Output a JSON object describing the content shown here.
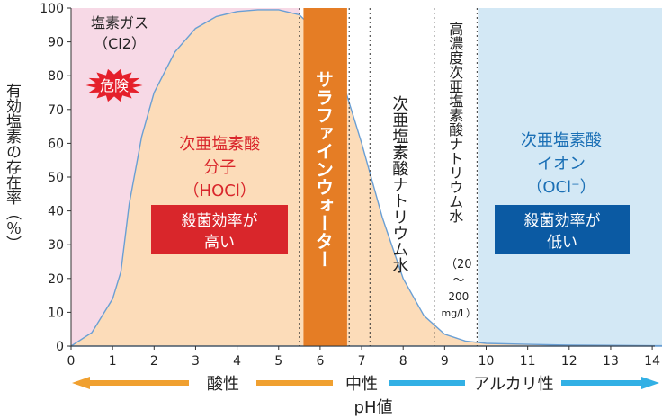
{
  "chart_data": {
    "type": "area",
    "ylabel": "有効塩素の存在率（％）",
    "xlabel": "pH値",
    "xlim": [
      0,
      14.7
    ],
    "ylim": [
      0,
      100
    ],
    "x_ticks": [
      "0",
      "1",
      "2",
      "3",
      "4",
      "5",
      "6",
      "7",
      "8",
      "9",
      "10",
      "11",
      "12",
      "13",
      "14"
    ],
    "y_ticks": [
      "0",
      "10",
      "20",
      "30",
      "40",
      "50",
      "60",
      "70",
      "80",
      "90",
      "100"
    ],
    "series": [
      {
        "x": [
          0,
          0.5,
          1.0,
          1.2,
          1.4,
          1.7,
          2.0,
          2.5,
          3.0,
          3.5,
          4.0,
          4.5,
          5.0,
          5.5,
          6.0,
          6.5,
          7.0,
          7.5,
          8.0,
          8.5,
          9.0,
          9.5,
          10.0,
          11.0,
          12.0,
          13.0,
          14.0,
          14.7
        ],
        "y": [
          0,
          4,
          14,
          22,
          42,
          62,
          75,
          87,
          94,
          97.5,
          99,
          99.5,
          99.5,
          98,
          92,
          80,
          60,
          38,
          20,
          9,
          3.5,
          1.5,
          0.8,
          0.5,
          0.3,
          0.2,
          0.1,
          0.1
        ]
      }
    ],
    "regions": [
      {
        "label": "塩素ガス",
        "formula": "（Cl2）",
        "badge": "危険",
        "color": "#f7d9e6"
      },
      {
        "title": [
          "次亜塩素酸",
          "分子",
          "（HOCl）"
        ],
        "box": [
          "殺菌効率が",
          "高い"
        ],
        "color": "#fcdcb9",
        "box_color": "#d9262b"
      },
      {
        "label": "サラファインウォーター",
        "color": "#e57d25"
      },
      {
        "label": "次亜塩素酸ナトリウム水",
        "color": "#ffffff"
      },
      {
        "label": "高濃度次亜塩素酸ナトリウム水",
        "sub": [
          "（20",
          "〜",
          "200",
          "mg/L）"
        ],
        "color": "#ffffff"
      },
      {
        "title": [
          "次亜塩素酸",
          "イオン",
          "（OCl⁻）"
        ],
        "box": [
          "殺菌効率が",
          "低い"
        ],
        "color": "#d3e8f5",
        "box_color": "#0b5aa3"
      }
    ],
    "bottom_labels": {
      "acid": "酸性",
      "neutral": "中性",
      "alkaline": "アルカリ性"
    },
    "colors": {
      "acid": "#f0a030",
      "alkaline": "#32b0e5",
      "curve": "#6a9fd4"
    }
  }
}
